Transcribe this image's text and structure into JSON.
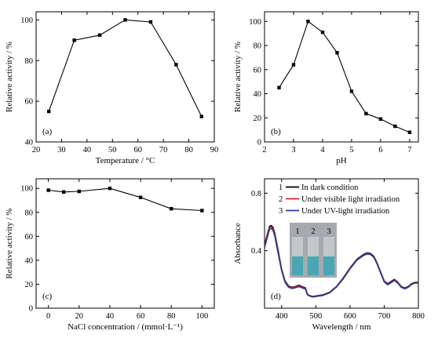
{
  "chart_data": [
    {
      "type": "line",
      "label": "(a)",
      "xlabel": "Temperature / °C",
      "ylabel": "Relative activity / %",
      "xlim": [
        20,
        90
      ],
      "ylim": [
        40,
        104
      ],
      "xticks": [
        20,
        30,
        40,
        50,
        60,
        70,
        80,
        90
      ],
      "yticks": [
        40,
        60,
        80,
        100
      ],
      "series": [
        {
          "x": [
            25,
            35,
            45,
            55,
            65,
            75,
            85
          ],
          "y": [
            55,
            90,
            92.5,
            100,
            99,
            78,
            52.5
          ]
        }
      ]
    },
    {
      "type": "line",
      "label": "(b)",
      "xlabel": "pH",
      "ylabel": "Relative activity / %",
      "xlim": [
        2,
        7.3
      ],
      "ylim": [
        0,
        108
      ],
      "xticks": [
        2,
        3,
        4,
        5,
        6,
        7
      ],
      "yticks": [
        0,
        20,
        40,
        60,
        80,
        100
      ],
      "series": [
        {
          "x": [
            2.5,
            3,
            3.5,
            4,
            4.5,
            5,
            5.5,
            6,
            6.5,
            7
          ],
          "y": [
            45,
            64,
            100,
            91,
            74,
            42,
            23.5,
            19,
            13,
            8
          ]
        }
      ]
    },
    {
      "type": "line",
      "label": "(c)",
      "xlabel": "NaCl concentration / (mmol·L⁻¹)",
      "ylabel": "Relative activity / %",
      "xlim": [
        -8,
        108
      ],
      "ylim": [
        0,
        108
      ],
      "xticks": [
        0,
        20,
        40,
        60,
        80,
        100
      ],
      "yticks": [
        0,
        20,
        40,
        60,
        80,
        100
      ],
      "series": [
        {
          "x": [
            0,
            10,
            20,
            40,
            60,
            80,
            100
          ],
          "y": [
            98.5,
            97,
            97.5,
            100,
            92.5,
            83,
            81.5
          ]
        }
      ]
    },
    {
      "type": "line",
      "label": "(d)",
      "xlabel": "Wavelength / nm",
      "ylabel": "Absorbance",
      "xlim": [
        350,
        800
      ],
      "ylim": [
        0.0,
        0.9
      ],
      "xticks": [
        400,
        500,
        600,
        700,
        800
      ],
      "yticks": [
        0.4,
        0.8
      ],
      "legend": "top-left",
      "inset_labels": [
        "1",
        "2",
        "3"
      ],
      "series": [
        {
          "num": "1",
          "name": "In dark condition",
          "color": "#000000",
          "x": [
            350,
            360,
            365,
            370,
            375,
            380,
            390,
            400,
            410,
            420,
            430,
            440,
            450,
            460,
            470,
            475,
            480,
            490,
            500,
            520,
            540,
            560,
            580,
            600,
            620,
            640,
            650,
            660,
            670,
            680,
            690,
            700,
            710,
            720,
            730,
            740,
            750,
            760,
            770,
            780,
            790,
            800
          ],
          "y": [
            0.44,
            0.53,
            0.57,
            0.575,
            0.56,
            0.52,
            0.4,
            0.27,
            0.19,
            0.155,
            0.145,
            0.15,
            0.16,
            0.15,
            0.14,
            0.1,
            0.09,
            0.082,
            0.085,
            0.092,
            0.11,
            0.15,
            0.21,
            0.28,
            0.34,
            0.375,
            0.385,
            0.38,
            0.36,
            0.31,
            0.25,
            0.19,
            0.17,
            0.185,
            0.2,
            0.18,
            0.15,
            0.14,
            0.15,
            0.17,
            0.18,
            0.18
          ]
        },
        {
          "num": "2",
          "name": "Under visible light irradiation",
          "color": "#e8202a",
          "x": [
            350,
            360,
            365,
            370,
            375,
            380,
            390,
            400,
            410,
            420,
            430,
            440,
            450,
            460,
            470,
            475,
            480,
            490,
            500,
            520,
            540,
            560,
            580,
            600,
            620,
            640,
            650,
            660,
            670,
            680,
            690,
            700,
            710,
            720,
            730,
            740,
            750,
            760,
            770,
            780,
            790,
            800
          ],
          "y": [
            0.43,
            0.52,
            0.56,
            0.565,
            0.55,
            0.51,
            0.39,
            0.265,
            0.185,
            0.15,
            0.14,
            0.146,
            0.155,
            0.146,
            0.136,
            0.098,
            0.088,
            0.08,
            0.083,
            0.09,
            0.108,
            0.148,
            0.207,
            0.276,
            0.336,
            0.37,
            0.38,
            0.376,
            0.356,
            0.306,
            0.246,
            0.186,
            0.166,
            0.18,
            0.196,
            0.177,
            0.147,
            0.137,
            0.147,
            0.167,
            0.177,
            0.177
          ]
        },
        {
          "num": "3",
          "name": "Under UV-light irradiation",
          "color": "#2b3a9b",
          "x": [
            350,
            360,
            365,
            370,
            375,
            380,
            390,
            400,
            410,
            420,
            430,
            440,
            450,
            460,
            470,
            475,
            480,
            490,
            500,
            520,
            540,
            560,
            580,
            600,
            620,
            640,
            650,
            660,
            670,
            680,
            690,
            700,
            710,
            720,
            730,
            740,
            750,
            760,
            770,
            780,
            790,
            800
          ],
          "y": [
            0.42,
            0.51,
            0.55,
            0.555,
            0.54,
            0.5,
            0.38,
            0.26,
            0.18,
            0.146,
            0.137,
            0.142,
            0.15,
            0.142,
            0.132,
            0.095,
            0.086,
            0.078,
            0.081,
            0.088,
            0.106,
            0.146,
            0.204,
            0.273,
            0.333,
            0.367,
            0.377,
            0.373,
            0.353,
            0.303,
            0.243,
            0.183,
            0.163,
            0.177,
            0.193,
            0.174,
            0.145,
            0.135,
            0.145,
            0.165,
            0.175,
            0.175
          ]
        }
      ]
    }
  ]
}
